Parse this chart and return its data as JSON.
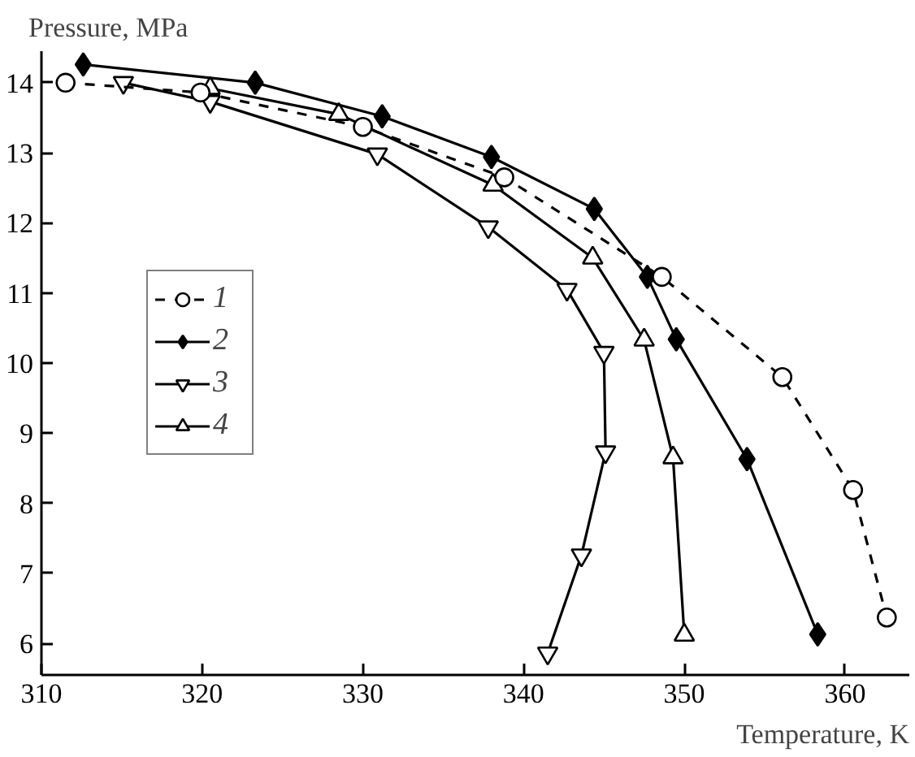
{
  "chart_data": {
    "type": "line",
    "xlabel": "Temperature, K",
    "ylabel": "Pressure, MPa",
    "xlim": [
      310,
      364
    ],
    "ylim": [
      5.55,
      14.45
    ],
    "xticks": [
      310,
      320,
      330,
      340,
      350,
      360
    ],
    "yticks": [
      6,
      7,
      8,
      9,
      10,
      11,
      12,
      13,
      14
    ],
    "grid": false,
    "legend": "left",
    "series": [
      {
        "name": "1",
        "color": "#000000",
        "marker": "circle",
        "line_style": "dashed",
        "x": [
          311.5,
          319.9,
          330.0,
          338.8,
          348.6,
          356.1,
          360.5,
          362.6
        ],
        "values": [
          14.0,
          13.86,
          13.37,
          12.65,
          11.23,
          9.8,
          8.19,
          6.37
        ]
      },
      {
        "name": "2",
        "color": "#000000",
        "marker": "diamond",
        "line_style": "solid",
        "x": [
          312.6,
          323.3,
          331.2,
          338.0,
          344.4,
          347.7,
          349.5,
          353.9,
          358.3
        ],
        "values": [
          14.26,
          14.0,
          13.52,
          12.94,
          12.2,
          11.23,
          10.34,
          8.63,
          6.13
        ]
      },
      {
        "name": "3",
        "color": "#000000",
        "marker": "triangle_down",
        "line_style": "solid",
        "x": [
          315.1,
          320.5,
          330.9,
          337.8,
          342.7,
          345.0,
          345.1,
          343.6,
          341.5
        ],
        "values": [
          14.0,
          13.73,
          12.98,
          11.94,
          11.05,
          10.15,
          8.73,
          7.26,
          5.86
        ]
      },
      {
        "name": "4",
        "color": "#000000",
        "marker": "triangle",
        "line_style": "solid",
        "x": [
          320.5,
          328.5,
          338.1,
          344.3,
          347.5,
          349.3,
          350.0
        ],
        "values": [
          13.92,
          13.55,
          12.54,
          11.5,
          10.33,
          8.65,
          6.12
        ]
      }
    ]
  }
}
